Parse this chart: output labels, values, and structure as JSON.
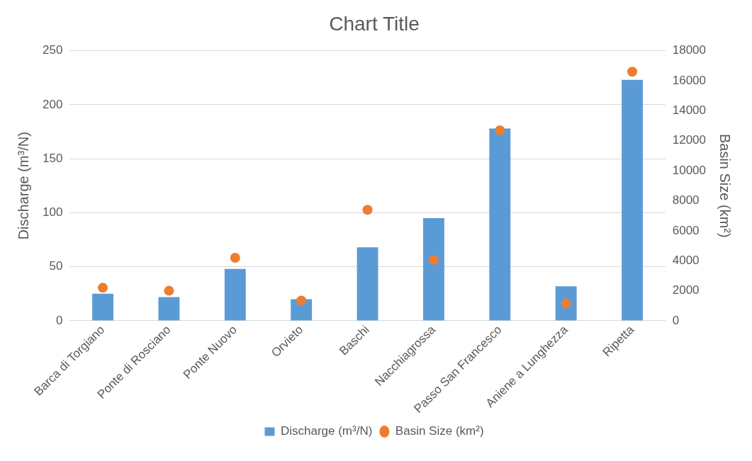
{
  "chart_data": {
    "type": "bar",
    "title": "Chart Title",
    "categories": [
      "Barca di Torgiano",
      "Ponte di Rosciano",
      "Ponte Nuovo",
      "Orvieto",
      "Baschi",
      "Nacchiagrossa",
      "Passo San Francesco",
      "Aniene a Lunghezza",
      "Ripetta"
    ],
    "series": [
      {
        "name": "Discharge (m³/N)",
        "color": "#5b9bd5",
        "values": [
          25,
          22,
          48,
          20,
          68,
          95,
          178,
          32,
          223
        ]
      },
      {
        "name": "Basin Size (km²)",
        "type": "scatter",
        "axis": "y2",
        "color": "#ed7d31",
        "marker": "circle",
        "values": [
          2200,
          2000,
          4200,
          1350,
          7400,
          4050,
          12700,
          1150,
          16600
        ]
      }
    ],
    "ylabel": "Discharge (m³/N)",
    "y2label": "Basin Size (km²)",
    "ylim": [
      0,
      250
    ],
    "yticks": [
      0,
      50,
      100,
      150,
      200,
      250
    ],
    "y2lim": [
      0,
      18000
    ],
    "y2ticks": [
      0,
      2000,
      4000,
      6000,
      8000,
      10000,
      12000,
      14000,
      16000,
      18000
    ],
    "grid": "y",
    "legend": "bottom"
  }
}
